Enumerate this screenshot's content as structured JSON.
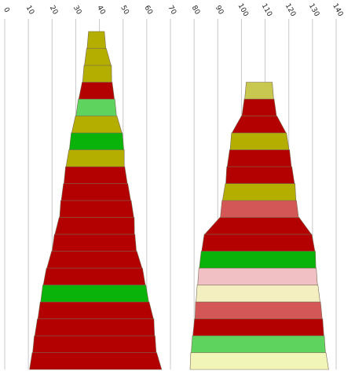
{
  "chart_data": {
    "type": "bar",
    "orientation": "stacked-trapezoid",
    "title": "",
    "xlabel": "",
    "ylabel": "",
    "xlim": [
      0,
      140
    ],
    "grid": true,
    "x_ticks": [
      "0",
      "10",
      "20",
      "30",
      "40",
      "50",
      "60",
      "70",
      "80",
      "90",
      "100",
      "110",
      "120",
      "130",
      "140"
    ],
    "stacks": [
      {
        "center": 39.0,
        "layers": [
          {
            "left": 10.5,
            "right": 66.3,
            "color": "#b30000"
          },
          {
            "left": 11.8,
            "right": 64.0,
            "color": "#b30000"
          },
          {
            "left": 12.7,
            "right": 63.3,
            "color": "#b30000"
          },
          {
            "left": 14.0,
            "right": 62.8,
            "color": "#b30000"
          },
          {
            "left": 15.2,
            "right": 60.8,
            "color": "#0ab30a"
          },
          {
            "left": 16.3,
            "right": 59.4,
            "color": "#b30000"
          },
          {
            "left": 17.8,
            "right": 58.0,
            "color": "#b30000"
          },
          {
            "left": 20.0,
            "right": 55.6,
            "color": "#b30000"
          },
          {
            "left": 21.2,
            "right": 54.8,
            "color": "#b30000"
          },
          {
            "left": 23.2,
            "right": 54.5,
            "color": "#b30000"
          },
          {
            "left": 23.9,
            "right": 53.2,
            "color": "#b30000"
          },
          {
            "left": 25.0,
            "right": 51.8,
            "color": "#b30000"
          },
          {
            "left": 25.9,
            "right": 50.5,
            "color": "#b3ae00"
          },
          {
            "left": 27.3,
            "right": 50.3,
            "color": "#0ab30a"
          },
          {
            "left": 28.3,
            "right": 49.5,
            "color": "#b3ae00"
          },
          {
            "left": 30.1,
            "right": 47.2,
            "color": "#5ed45e"
          },
          {
            "left": 31.3,
            "right": 46.3,
            "color": "#b30000"
          },
          {
            "left": 32.9,
            "right": 45.2,
            "color": "#b3ae00"
          },
          {
            "left": 33.7,
            "right": 44.9,
            "color": "#b3ae00"
          },
          {
            "left": 34.8,
            "right": 42.7,
            "color": "#b3ae00"
          }
        ]
      },
      {
        "center": 107.5,
        "layers": [
          {
            "left": 78.3,
            "right": 136.8,
            "color": "#f1f5b8"
          },
          {
            "left": 78.8,
            "right": 135.5,
            "color": "#5ed45e"
          },
          {
            "left": 79.5,
            "right": 134.8,
            "color": "#b30000"
          },
          {
            "left": 80.4,
            "right": 134.1,
            "color": "#d45757"
          },
          {
            "left": 80.8,
            "right": 133.2,
            "color": "#f3efc1"
          },
          {
            "left": 81.5,
            "right": 132.1,
            "color": "#f0c0c5"
          },
          {
            "left": 82.2,
            "right": 131.4,
            "color": "#0ab30a"
          },
          {
            "left": 83.2,
            "right": 131.0,
            "color": "#b30000"
          },
          {
            "left": 84.5,
            "right": 129.5,
            "color": "#b30000"
          },
          {
            "left": 91.1,
            "right": 124.1,
            "color": "#d45757"
          },
          {
            "left": 92.0,
            "right": 123.0,
            "color": "#b3ae00"
          },
          {
            "left": 93.4,
            "right": 122.4,
            "color": "#b30000"
          },
          {
            "left": 94.0,
            "right": 121.1,
            "color": "#b30000"
          },
          {
            "left": 95.2,
            "right": 120.1,
            "color": "#b3ae00"
          },
          {
            "left": 96.0,
            "right": 118.8,
            "color": "#b30000"
          },
          {
            "left": 100.2,
            "right": 114.8,
            "color": "#b30000"
          },
          {
            "left": 101.4,
            "right": 113.6,
            "color": "#c8c850"
          }
        ]
      }
    ]
  }
}
